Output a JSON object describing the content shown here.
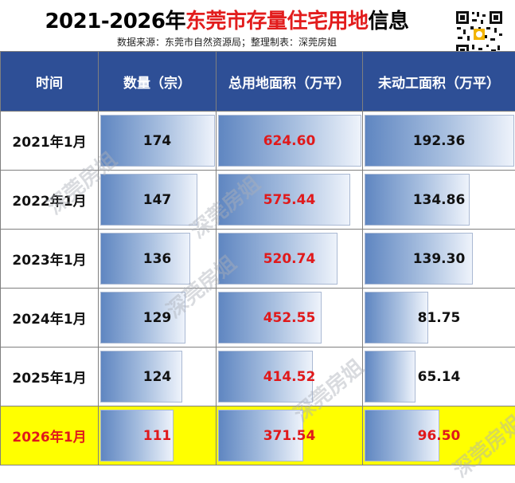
{
  "title_prefix": "2021-2026年",
  "title_highlight": "东莞市存量住宅用地",
  "title_suffix": "信息",
  "subtitle": "数据来源：东莞市自然资源局；整理制表：深莞房姐",
  "watermark": "深莞房姐",
  "colors": {
    "header_bg": "#2e4f96",
    "highlight_row": "#ffff00",
    "red_text": "#e0191b"
  },
  "chart_data": {
    "type": "table",
    "columns": [
      "时间",
      "数量（宗）",
      "总用地面积（万平）",
      "未动工面积（万平）"
    ],
    "rows": [
      {
        "time": "2021年1月",
        "count": "174",
        "area": "624.60",
        "undeveloped": "192.36"
      },
      {
        "time": "2022年1月",
        "count": "147",
        "area": "575.44",
        "undeveloped": "134.86"
      },
      {
        "time": "2023年1月",
        "count": "136",
        "area": "520.74",
        "undeveloped": "139.30"
      },
      {
        "time": "2024年1月",
        "count": "129",
        "area": "452.55",
        "undeveloped": "81.75"
      },
      {
        "time": "2025年1月",
        "count": "124",
        "area": "414.52",
        "undeveloped": "65.14"
      },
      {
        "time": "2026年1月",
        "count": "111",
        "area": "371.54",
        "undeveloped": "96.50"
      }
    ],
    "highlighted_row": "2026年1月"
  }
}
